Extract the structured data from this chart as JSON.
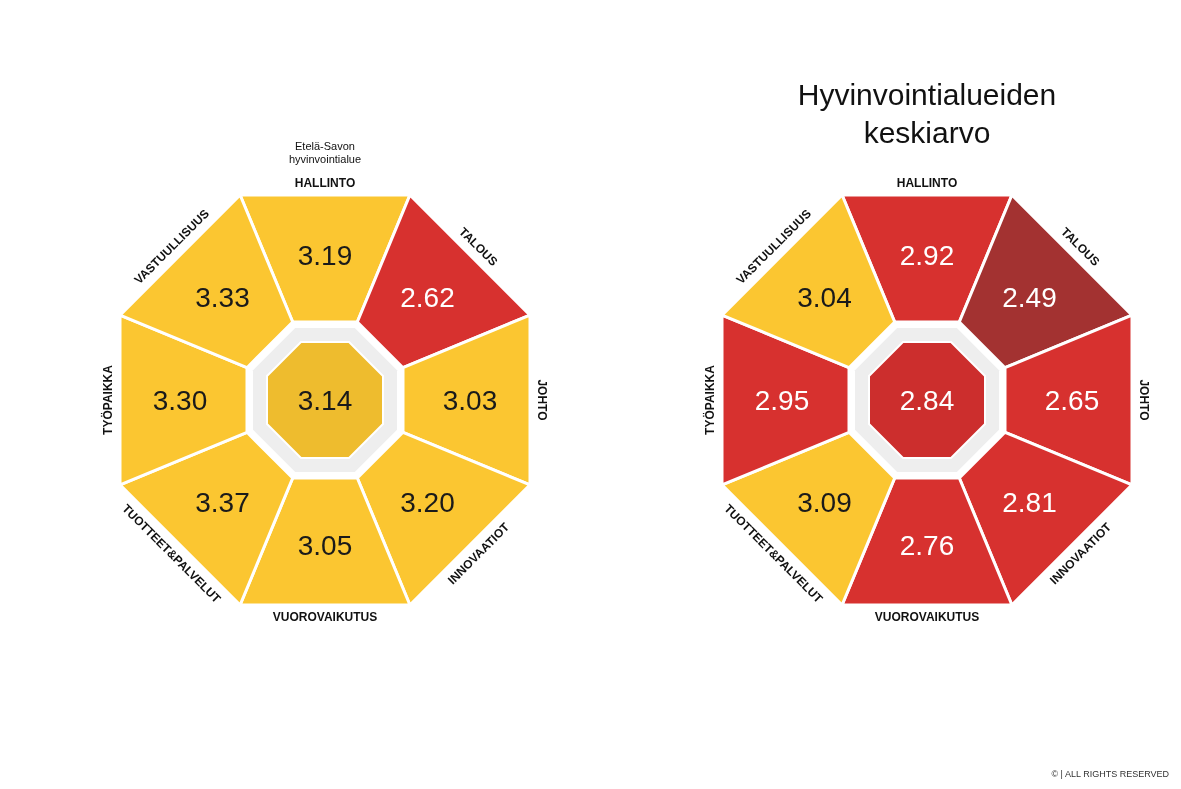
{
  "chart_data": [
    {
      "type": "other",
      "title": "Etelä-Savon hyvinvointialue",
      "categories": [
        "HALLINTO",
        "TALOUS",
        "JOHTO",
        "INNOVAATIOT",
        "VUOROVAIKUTUS",
        "TUOTTEET&PALVELUT",
        "TYÖPAIKKA",
        "VASTUULLISUUS"
      ],
      "values": [
        3.19,
        2.62,
        3.03,
        3.2,
        3.05,
        3.37,
        3.3,
        3.33
      ],
      "value_labels": [
        "3.19",
        "2.62",
        "3.03",
        "3.20",
        "3.05",
        "3.37",
        "3.30",
        "3.33"
      ],
      "colors": [
        "#fbc631",
        "#d7312f",
        "#fbc631",
        "#fbc631",
        "#fbc631",
        "#fbc631",
        "#fbc631",
        "#fbc631"
      ],
      "annotations": [
        "3.14"
      ]
    },
    {
      "type": "other",
      "title": "Hyvinvointialueiden keskiarvo",
      "categories": [
        "HALLINTO",
        "TALOUS",
        "JOHTO",
        "INNOVAATIOT",
        "VUOROVAIKUTUS",
        "TUOTTEET&PALVELUT",
        "TYÖPAIKKA",
        "VASTUULLISUUS"
      ],
      "values": [
        2.92,
        2.49,
        2.65,
        2.81,
        2.76,
        3.09,
        2.95,
        3.04
      ],
      "value_labels": [
        "2.92",
        "2.49",
        "2.65",
        "2.81",
        "2.76",
        "3.09",
        "2.95",
        "3.04"
      ],
      "colors": [
        "#d7312f",
        "#a33231",
        "#d7312f",
        "#d7312f",
        "#d7312f",
        "#fbc631",
        "#d7312f",
        "#fbc631"
      ],
      "annotations": [
        "2.84",
        "© | ALL RIGHTS RESERVED"
      ]
    }
  ]
}
